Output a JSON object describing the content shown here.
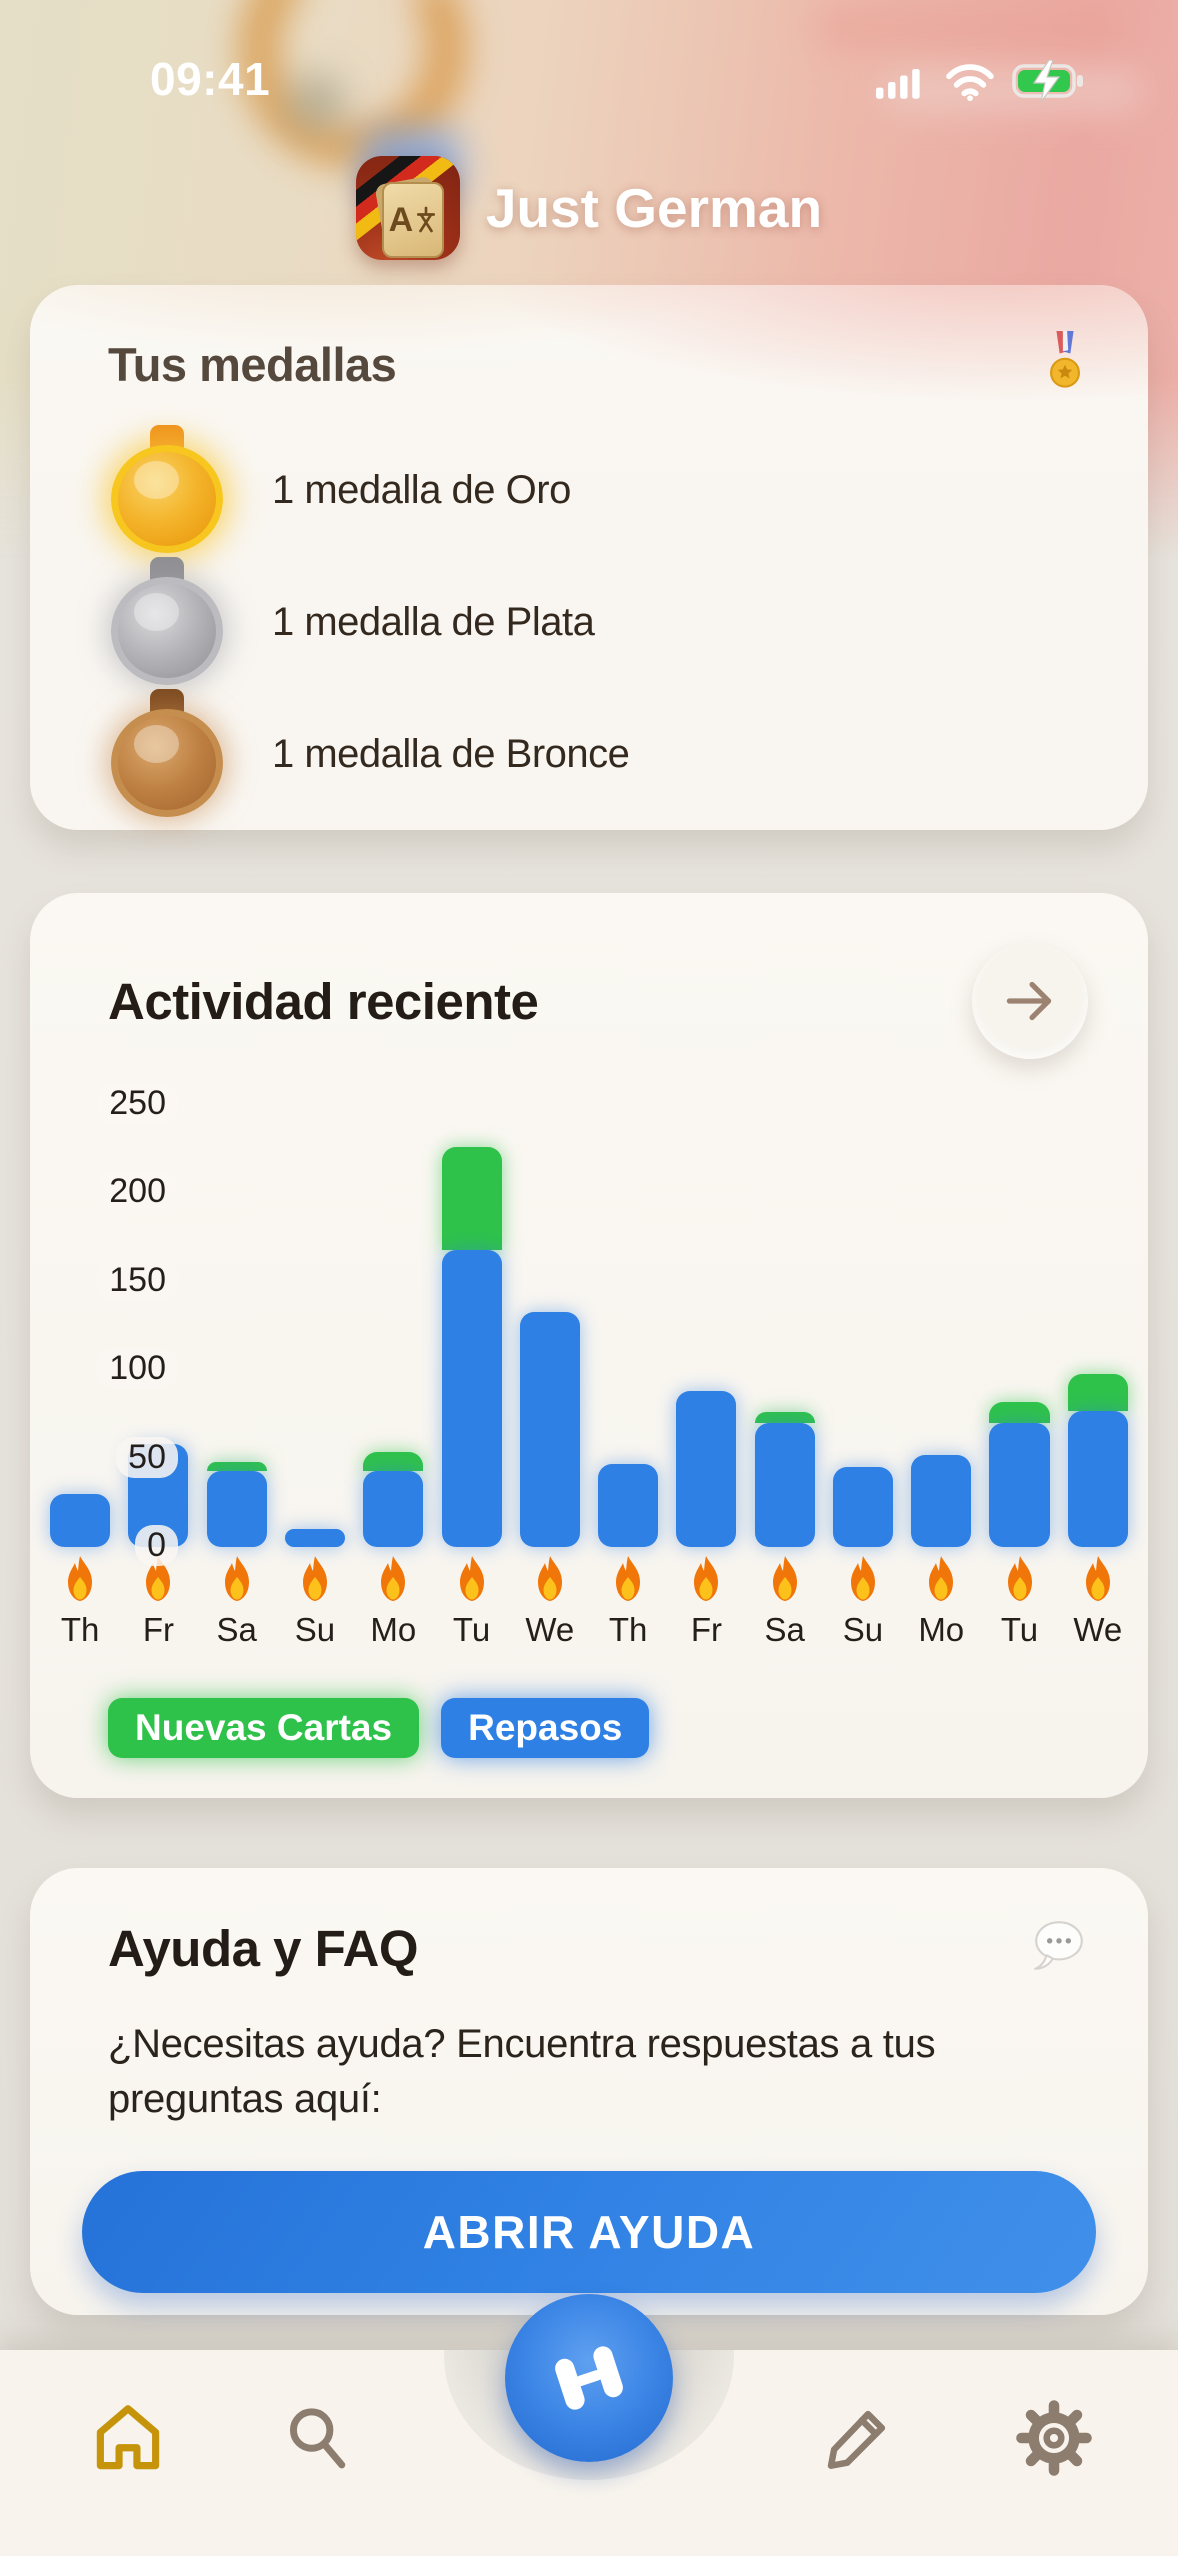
{
  "status_bar": {
    "time": "09:41"
  },
  "header": {
    "app_title": "Just German"
  },
  "medals_card": {
    "title": "Tus medallas",
    "items": [
      {
        "label": "1 medalla de Oro",
        "medal": "gold"
      },
      {
        "label": "1 medalla de Plata",
        "medal": "silver"
      },
      {
        "label": "1 medalla de Bronce",
        "medal": "bronze"
      }
    ]
  },
  "activity_card": {
    "title": "Actividad reciente"
  },
  "help_card": {
    "title": "Ayuda y FAQ",
    "body": "¿Necesitas ayuda? Encuentra respuestas a tus preguntas aquí:",
    "button_label": "ABRIR AYUDA"
  },
  "colors": {
    "repasos_blue": "#2e80e4",
    "nuevas_green": "#2fc24b",
    "accent_gold": "#c6940b",
    "inactive_icon": "#8c7d6f",
    "help_button_blue": "#2b7de0",
    "card_background": "#f9f6f1"
  },
  "chart_data": {
    "type": "bar",
    "stacked": true,
    "categories": [
      "Th",
      "Fr",
      "Sa",
      "Su",
      "Mo",
      "Tu",
      "We",
      "Th",
      "Fr",
      "Sa",
      "Su",
      "Mo",
      "Tu",
      "We"
    ],
    "series": [
      {
        "name": "Nuevas Cartas",
        "color": "#2fc24b",
        "values": [
          0,
          0,
          5,
          0,
          11,
          58,
          0,
          0,
          0,
          6,
          0,
          0,
          12,
          21
        ]
      },
      {
        "name": "Repasos",
        "color": "#2e80e4",
        "values": [
          30,
          58,
          43,
          10,
          43,
          168,
          133,
          47,
          88,
          70,
          45,
          52,
          70,
          77
        ]
      }
    ],
    "title": "Actividad reciente",
    "xlabel": "",
    "ylabel": "",
    "ylim": [
      0,
      250
    ],
    "yticks": [
      0,
      50,
      100,
      150,
      200,
      250
    ],
    "grid": false,
    "legend_position": "bottom-left",
    "x_marker_icon": "flame-icon"
  }
}
